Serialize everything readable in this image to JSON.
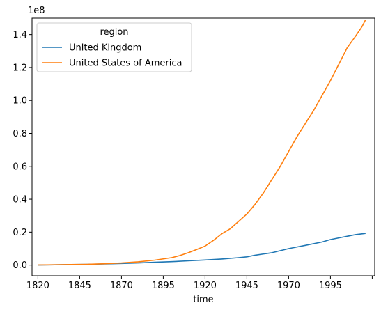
{
  "chart_data": {
    "type": "line",
    "xlabel": "time",
    "ylabel": "",
    "offset_label": "1e8",
    "xlim": [
      1816.5,
      2021.5
    ],
    "ylim": [
      -6500000,
      150000000
    ],
    "x_ticks": [
      1820,
      1845,
      1870,
      1895,
      1920,
      1945,
      1970,
      1995,
      2020
    ],
    "x_tick_labels": [
      "1820",
      "1845",
      "1870",
      "1895",
      "1920",
      "1945",
      "1970",
      "1995",
      ""
    ],
    "y_ticks": [
      0,
      20000000,
      40000000,
      60000000,
      80000000,
      100000000,
      120000000,
      140000000
    ],
    "y_tick_labels": [
      "0.0",
      "0.2",
      "0.4",
      "0.6",
      "0.8",
      "1.0",
      "1.2",
      "1.4"
    ],
    "grid": false,
    "legend": {
      "title": "region",
      "placement": "top-left"
    },
    "series": [
      {
        "name": "United Kingdom",
        "color": "#1f77b4",
        "x": [
          1820,
          1830,
          1840,
          1850,
          1860,
          1870,
          1880,
          1890,
          1900,
          1910,
          1920,
          1930,
          1940,
          1945,
          1950,
          1960,
          1970,
          1975,
          1980,
          1990,
          1995,
          2000,
          2005,
          2010,
          2016
        ],
        "y": [
          0,
          200000,
          350000,
          500000,
          700000,
          1000000,
          1300000,
          1700000,
          2100000,
          2600000,
          3100000,
          3700000,
          4500000,
          5000000,
          6000000,
          7500000,
          10000000,
          11000000,
          12000000,
          14000000,
          15500000,
          16500000,
          17500000,
          18500000,
          19200000
        ]
      },
      {
        "name": "United States of America",
        "color": "#ff7f0e",
        "x": [
          1820,
          1830,
          1840,
          1850,
          1860,
          1870,
          1880,
          1890,
          1900,
          1905,
          1910,
          1915,
          1920,
          1925,
          1930,
          1935,
          1940,
          1945,
          1950,
          1955,
          1960,
          1965,
          1970,
          1975,
          1980,
          1985,
          1990,
          1995,
          2000,
          2005,
          2010,
          2014,
          2016
        ],
        "y": [
          100000,
          200000,
          350000,
          500000,
          800000,
          1300000,
          2000000,
          3000000,
          4500000,
          5800000,
          7500000,
          9500000,
          11500000,
          15000000,
          19000000,
          22000000,
          26500000,
          31000000,
          37000000,
          44000000,
          52000000,
          60000000,
          69000000,
          78000000,
          86000000,
          94000000,
          103000000,
          112000000,
          122000000,
          132000000,
          139000000,
          145000000,
          149000000
        ]
      }
    ]
  }
}
